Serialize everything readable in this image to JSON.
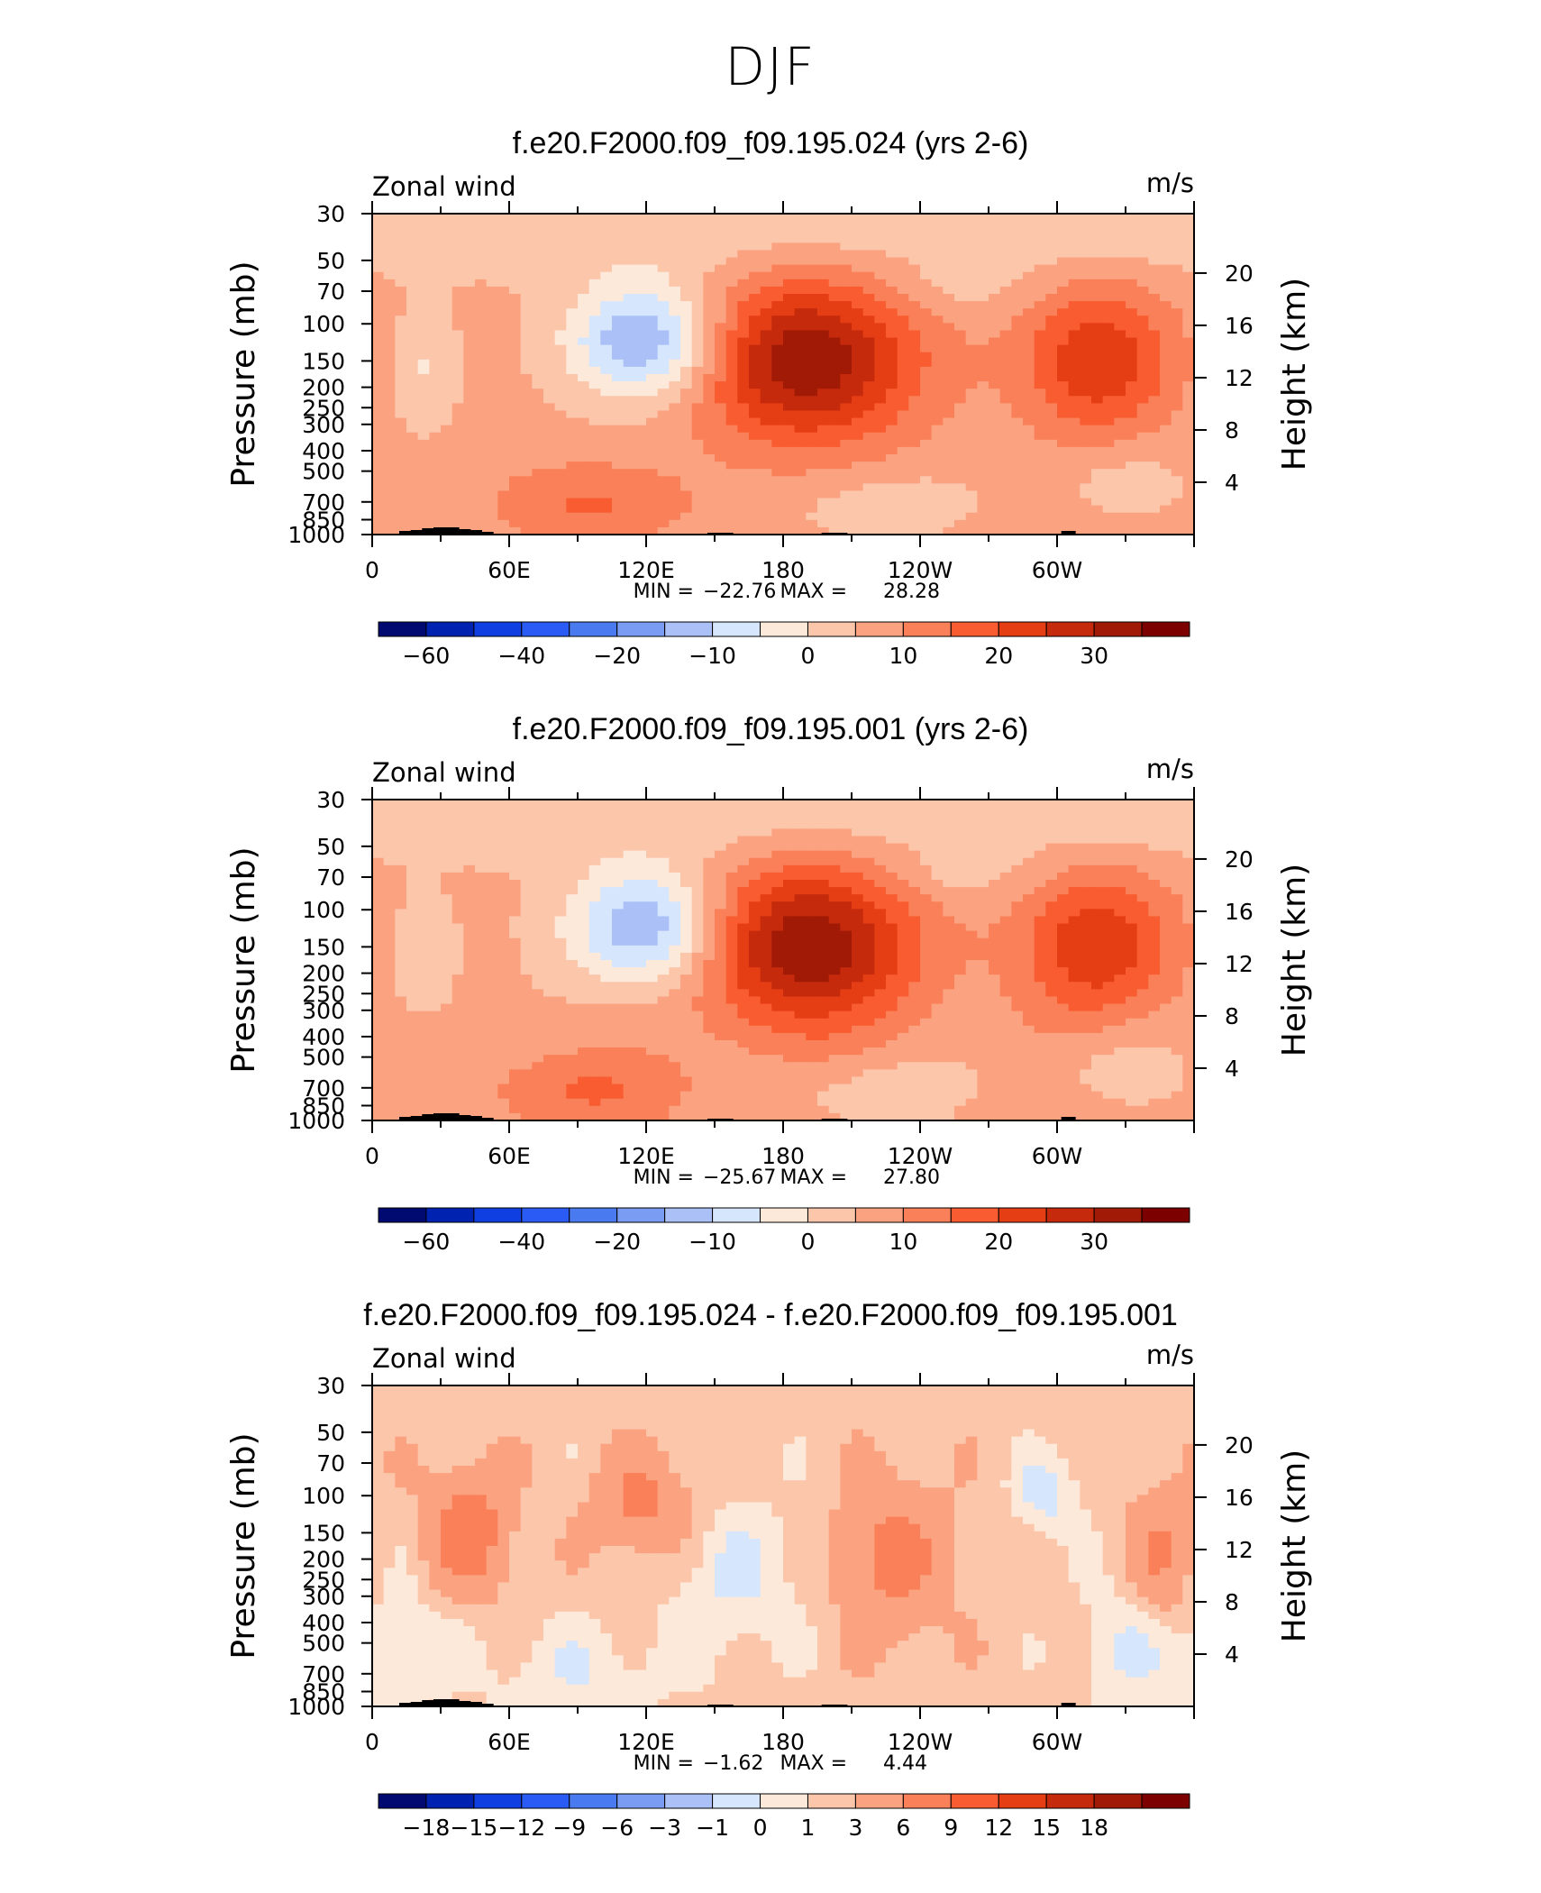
{
  "page": {
    "title": "DJF"
  },
  "chart_data": [
    {
      "type": "heatmap",
      "title": "f.e20.F2000.f09_f09.195.024 (yrs 2-6)",
      "variable_label": "Zonal wind",
      "units": "m/s",
      "ylabel_left": "Pressure (mb)",
      "ylabel_right": "Height (km)",
      "x_ticks": [
        "0",
        "60E",
        "120E",
        "180",
        "120W",
        "60W"
      ],
      "y_ticks_left": [
        "30",
        "50",
        "70",
        "100",
        "150",
        "200",
        "250",
        "300",
        "400",
        "500",
        "700",
        "850",
        "1000"
      ],
      "y_ticks_right": [
        "20",
        "16",
        "12",
        "8",
        "4"
      ],
      "stats": {
        "min_label": "MIN =",
        "min": "−22.76",
        "max_label": "MAX =",
        "max": "28.28"
      },
      "colorbar": {
        "levels": [
          -70,
          -60,
          -50,
          -40,
          -30,
          -20,
          -15,
          -10,
          -5,
          0,
          5,
          10,
          15,
          20,
          25,
          30,
          35
        ],
        "labels": [
          "−60",
          "−40",
          "−20",
          "−10",
          "0",
          "10",
          "20",
          "30"
        ],
        "colors": [
          "#000a70",
          "#0022b0",
          "#0f3fe0",
          "#2a5cf5",
          "#4a7af0",
          "#7a9cf2",
          "#aac0f7",
          "#d6e6fd",
          "#fde9d9",
          "#fcc6ab",
          "#fba281",
          "#f98059",
          "#f85c30",
          "#e53d14",
          "#c42a0b",
          "#a11a06",
          "#7c0000"
        ]
      },
      "features": [
        {
          "name": "jet-core-east-pacific",
          "lon": 190,
          "p": 150,
          "peak_mps": 28
        },
        {
          "name": "jet-core-atlantic",
          "lon": 318,
          "p": 150,
          "peak_mps": 18
        },
        {
          "name": "easterly-core-west-pacific",
          "lon": 120,
          "p": 120,
          "peak_mps": -22
        }
      ]
    },
    {
      "type": "heatmap",
      "title": "f.e20.F2000.f09_f09.195.001 (yrs 2-6)",
      "variable_label": "Zonal wind",
      "units": "m/s",
      "ylabel_left": "Pressure (mb)",
      "ylabel_right": "Height (km)",
      "x_ticks": [
        "0",
        "60E",
        "120E",
        "180",
        "120W",
        "60W"
      ],
      "y_ticks_left": [
        "30",
        "50",
        "70",
        "100",
        "150",
        "200",
        "250",
        "300",
        "400",
        "500",
        "700",
        "850",
        "1000"
      ],
      "y_ticks_right": [
        "20",
        "16",
        "12",
        "8",
        "4"
      ],
      "stats": {
        "min_label": "MIN =",
        "min": "−25.67",
        "max_label": "MAX =",
        "max": "27.80"
      },
      "colorbar": {
        "levels": [
          -70,
          -60,
          -50,
          -40,
          -30,
          -20,
          -15,
          -10,
          -5,
          0,
          5,
          10,
          15,
          20,
          25,
          30,
          35
        ],
        "labels": [
          "−60",
          "−40",
          "−20",
          "−10",
          "0",
          "10",
          "20",
          "30"
        ],
        "colors": [
          "#000a70",
          "#0022b0",
          "#0f3fe0",
          "#2a5cf5",
          "#4a7af0",
          "#7a9cf2",
          "#aac0f7",
          "#d6e6fd",
          "#fde9d9",
          "#fcc6ab",
          "#fba281",
          "#f98059",
          "#f85c30",
          "#e53d14",
          "#c42a0b",
          "#a11a06",
          "#7c0000"
        ]
      },
      "features": [
        {
          "name": "jet-core-east-pacific",
          "lon": 190,
          "p": 150,
          "peak_mps": 27
        },
        {
          "name": "jet-core-atlantic",
          "lon": 318,
          "p": 150,
          "peak_mps": 18
        },
        {
          "name": "easterly-core-west-pacific",
          "lon": 120,
          "p": 120,
          "peak_mps": -25
        }
      ]
    },
    {
      "type": "heatmap",
      "title": "f.e20.F2000.f09_f09.195.024 - f.e20.F2000.f09_f09.195.001",
      "variable_label": "Zonal wind",
      "units": "m/s",
      "ylabel_left": "Pressure (mb)",
      "ylabel_right": "Height (km)",
      "x_ticks": [
        "0",
        "60E",
        "120E",
        "180",
        "120W",
        "60W"
      ],
      "y_ticks_left": [
        "30",
        "50",
        "70",
        "100",
        "150",
        "200",
        "250",
        "300",
        "400",
        "500",
        "700",
        "850",
        "1000"
      ],
      "y_ticks_right": [
        "20",
        "16",
        "12",
        "8",
        "4"
      ],
      "stats": {
        "min_label": "MIN =",
        "min": "−1.62",
        "max_label": "MAX =",
        "max": "4.44"
      },
      "colorbar": {
        "levels": [
          -21,
          -18,
          -15,
          -12,
          -9,
          -6,
          -3,
          -1,
          0,
          1,
          3,
          6,
          9,
          12,
          15,
          18,
          21
        ],
        "labels": [
          "−18",
          "−15",
          "−12",
          "−9",
          "−6",
          "−3",
          "−1",
          "0",
          "1",
          "3",
          "6",
          "9",
          "12",
          "15",
          "18"
        ],
        "colors": [
          "#000a70",
          "#0022b0",
          "#0f3fe0",
          "#2a5cf5",
          "#4a7af0",
          "#7a9cf2",
          "#aac0f7",
          "#d6e6fd",
          "#fde9d9",
          "#fcc6ab",
          "#fba281",
          "#f98059",
          "#f85c30",
          "#e53d14",
          "#c42a0b",
          "#a11a06",
          "#7c0000"
        ]
      },
      "features": [
        {
          "name": "positive-anomaly-indian-ocean",
          "lon": 42,
          "p": 150,
          "peak_mps": 4
        },
        {
          "name": "positive-anomaly-east-pacific",
          "lon": 228,
          "p": 200,
          "peak_mps": 3
        },
        {
          "name": "negative-anomaly-atlantic",
          "lon": 295,
          "p": 100,
          "peak_mps": -1.5
        }
      ]
    }
  ]
}
